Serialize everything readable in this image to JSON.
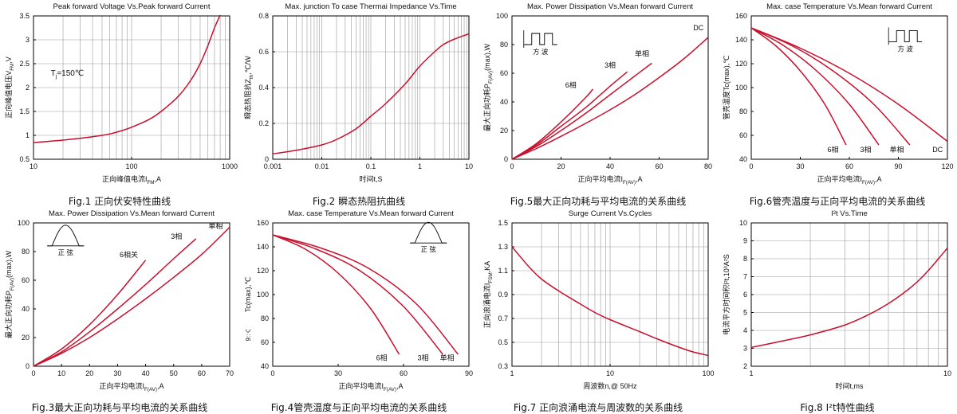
{
  "colors": {
    "curve": "#c8102e",
    "grid": "#9a9a9a",
    "axis": "#000000"
  },
  "chart_data": [
    {
      "type": "line",
      "title": "Peak forward Voltage Vs.Peak forward Current",
      "caption": "Fig.1 正向伏安特性曲线",
      "xlabel": "正向峰值电流I",
      "xlabel_sub": "FM",
      "xlabel_unit": ",A",
      "ylabel": "正向峰值电压V",
      "ylabel_sub": "FM",
      "ylabel_unit": ",V",
      "xscale": "log",
      "xlim": [
        10,
        1000
      ],
      "ylim": [
        0.5,
        3.5
      ],
      "xticks": [
        10,
        100,
        1000
      ],
      "xtick_labels": [
        "10",
        "100",
        "1000"
      ],
      "yticks": [
        0.5,
        1,
        1.5,
        2,
        2.5,
        3,
        3.5
      ],
      "ytick_labels": [
        "0.5",
        "1",
        "1.5",
        "2",
        "2.5",
        "3",
        "3.5"
      ],
      "minor_x": true,
      "ygrid": [
        1,
        1.5,
        2,
        2.5,
        3
      ],
      "annotations": [
        {
          "text": "T",
          "sub": "j",
          "text2": "=150℃",
          "x": 15,
          "y": 2.25
        }
      ],
      "series": [
        {
          "x": [
            10,
            20,
            40,
            60,
            80,
            100,
            150,
            200,
            300,
            400,
            500,
            600,
            700,
            800
          ],
          "y": [
            0.85,
            0.9,
            0.97,
            1.03,
            1.1,
            1.17,
            1.33,
            1.5,
            1.82,
            2.15,
            2.5,
            2.88,
            3.25,
            3.52
          ]
        }
      ]
    },
    {
      "type": "line",
      "title": "Max. junction To case Thermai Impedance Vs.Time",
      "caption": "Fig.2  瞬态热阻抗曲线",
      "xlabel": "时间t,S",
      "xlabel_sub": "",
      "xlabel_unit": "",
      "ylabel": "瞬态热阻抗Z",
      "ylabel_sub": "th",
      "ylabel_unit": ",℃/W",
      "xscale": "log",
      "xlim": [
        0.001,
        10
      ],
      "ylim": [
        0,
        0.8
      ],
      "xticks": [
        0.001,
        0.01,
        0.1,
        1,
        10
      ],
      "xtick_labels": [
        "0.001",
        "0.01",
        "0.1",
        "1",
        "10"
      ],
      "yticks": [
        0,
        0.2,
        0.4,
        0.6,
        0.8
      ],
      "ytick_labels": [
        "0",
        "0.2",
        "0.4",
        "0.6",
        "0.8"
      ],
      "minor_x": true,
      "ygrid": [
        0.2,
        0.4,
        0.6
      ],
      "series": [
        {
          "x": [
            0.001,
            0.003,
            0.01,
            0.02,
            0.05,
            0.1,
            0.2,
            0.5,
            1,
            2,
            3,
            5,
            10
          ],
          "y": [
            0.03,
            0.05,
            0.08,
            0.11,
            0.17,
            0.24,
            0.31,
            0.42,
            0.52,
            0.6,
            0.64,
            0.67,
            0.7
          ]
        }
      ]
    },
    {
      "type": "line",
      "title": "Max. Power Dissipation Vs.Mean forward Current",
      "caption": "Fig.5最大正向功耗与平均电流的关系曲线",
      "xlabel": "正向平均电流I",
      "xlabel_sub": "F(AV)",
      "xlabel_unit": ",A",
      "ylabel": "最大正向功耗P",
      "ylabel_sub": "F(AV)",
      "ylabel_unit": "(max),W",
      "xscale": "linear",
      "xlim": [
        0,
        80
      ],
      "ylim": [
        0,
        100
      ],
      "xticks": [
        0,
        20,
        40,
        60,
        80
      ],
      "xtick_labels": [
        "0",
        "20",
        "40",
        "60",
        "80"
      ],
      "yticks": [
        0,
        20,
        40,
        60,
        80,
        100
      ],
      "ytick_labels": [
        "0",
        "20",
        "40",
        "60",
        "80",
        "100"
      ],
      "inset": {
        "kind": "square",
        "text": "方    波",
        "x": 0.06,
        "y": 0.2
      },
      "series": [
        {
          "name": "6相",
          "x": [
            0,
            10,
            20,
            30,
            33
          ],
          "y": [
            0,
            11,
            26,
            43,
            49
          ],
          "lx": 24,
          "ly": 50
        },
        {
          "name": "3相",
          "x": [
            0,
            10,
            20,
            30,
            40,
            47
          ],
          "y": [
            0,
            10,
            23,
            36,
            51,
            61
          ],
          "lx": 40,
          "ly": 64
        },
        {
          "name": "单相",
          "x": [
            0,
            10,
            20,
            30,
            40,
            50,
            57
          ],
          "y": [
            0,
            9,
            20,
            32,
            45,
            58,
            67
          ],
          "lx": 53,
          "ly": 72
        },
        {
          "name": "DC",
          "x": [
            0,
            10,
            20,
            30,
            40,
            50,
            60,
            70,
            80
          ],
          "y": [
            0,
            7.5,
            16,
            25,
            34.5,
            45,
            57,
            70,
            85
          ],
          "lx": 76,
          "ly": 90
        }
      ]
    },
    {
      "type": "line",
      "title": "Max. case Temperature Vs.Mean forward Current",
      "caption": "Fig.6管壳温度与正向平均电流的关系曲线",
      "xlabel": "正向平均电流I",
      "xlabel_sub": "F(AV)",
      "xlabel_unit": ",A",
      "ylabel": "管壳温度Tc(max),℃",
      "ylabel_sub": "",
      "ylabel_unit": "",
      "xscale": "linear",
      "xlim": [
        0,
        120
      ],
      "ylim": [
        40,
        160
      ],
      "xticks": [
        0,
        30,
        60,
        90,
        120
      ],
      "xtick_labels": [
        "0",
        "30",
        "60",
        "90",
        "120"
      ],
      "yticks": [
        40,
        60,
        80,
        100,
        120,
        140,
        160
      ],
      "ytick_labels": [
        "40",
        "60",
        "80",
        "100",
        "120",
        "140",
        "160"
      ],
      "inset": {
        "kind": "square",
        "text": "方    波",
        "x": 0.7,
        "y": 0.18
      },
      "series": [
        {
          "name": "6相",
          "x": [
            0,
            15,
            30,
            45,
            58
          ],
          "y": [
            150,
            135,
            114,
            86,
            52
          ],
          "lx": 50,
          "ly": 46
        },
        {
          "name": "3相",
          "x": [
            0,
            20,
            40,
            60,
            78
          ],
          "y": [
            150,
            135,
            114,
            86,
            52
          ],
          "lx": 70,
          "ly": 46
        },
        {
          "name": "单相",
          "x": [
            0,
            25,
            50,
            75,
            97
          ],
          "y": [
            150,
            135,
            114,
            86,
            52
          ],
          "lx": 89,
          "ly": 46
        },
        {
          "name": "DC",
          "x": [
            0,
            30,
            60,
            90,
            120
          ],
          "y": [
            150,
            133,
            112,
            86,
            55
          ],
          "lx": 114,
          "ly": 46
        }
      ]
    },
    {
      "type": "line",
      "title": "Max. Power Dissipation Vs.Mean forward Current",
      "caption": "Fig.3最大正向功耗与平均电流的关系曲线",
      "xlabel": "正向平均电流I",
      "xlabel_sub": "F(AV)",
      "xlabel_unit": ",A",
      "ylabel": "最大正向功耗P",
      "ylabel_sub": "F(AV)",
      "ylabel_unit": "(max),W",
      "xscale": "linear",
      "xlim": [
        0,
        70
      ],
      "ylim": [
        0,
        100
      ],
      "xticks": [
        0,
        10,
        20,
        30,
        40,
        50,
        60,
        70
      ],
      "xtick_labels": [
        "0",
        "10",
        "20",
        "30",
        "40",
        "50",
        "60",
        "70"
      ],
      "yticks": [
        0,
        20,
        40,
        60,
        80,
        100
      ],
      "ytick_labels": [
        "0",
        "20",
        "40",
        "60",
        "80",
        "100"
      ],
      "inset": {
        "kind": "sine",
        "text": "正    弦",
        "x": 0.07,
        "y": 0.16
      },
      "series": [
        {
          "name": "6相关",
          "x": [
            0,
            10,
            20,
            30,
            40
          ],
          "y": [
            0,
            12,
            29,
            50,
            74
          ],
          "lx": 34,
          "ly": 76
        },
        {
          "name": "3相",
          "x": [
            0,
            10,
            20,
            30,
            40,
            50,
            58
          ],
          "y": [
            0,
            10,
            24,
            40,
            57,
            75,
            89
          ],
          "lx": 51,
          "ly": 89
        },
        {
          "name": "单相",
          "x": [
            0,
            10,
            20,
            30,
            40,
            50,
            60,
            70
          ],
          "y": [
            0,
            9,
            20,
            33,
            47,
            62,
            78,
            97
          ],
          "lx": 65,
          "ly": 96
        }
      ]
    },
    {
      "type": "line",
      "title": "Max. case Temperature Vs.Mean forward Current",
      "caption": "Fig.4管壳温度与正向平均电流的关系曲线",
      "xlabel": "正向平均电流I",
      "xlabel_sub": "F(AV)",
      "xlabel_unit": ",A",
      "ylabel": "Tc(max),℃",
      "ylabel_sub": "",
      "ylabel_unit": "",
      "ylabel2": "9::く",
      "xscale": "linear",
      "xlim": [
        0,
        90
      ],
      "ylim": [
        40,
        160
      ],
      "xticks": [
        0,
        30,
        60,
        90
      ],
      "xtick_labels": [
        "0",
        "30",
        "60",
        "90"
      ],
      "yticks": [
        40,
        60,
        80,
        100,
        120,
        140,
        160
      ],
      "ytick_labels": [
        "40",
        "60",
        "80",
        "100",
        "120",
        "140",
        "160"
      ],
      "inset": {
        "kind": "sine",
        "text": "正    弦",
        "x": 0.7,
        "y": 0.14
      },
      "series": [
        {
          "name": "6相",
          "x": [
            0,
            15,
            30,
            45,
            58
          ],
          "y": [
            150,
            138,
            118,
            88,
            50
          ],
          "lx": 50,
          "ly": 45
        },
        {
          "name": "3相",
          "x": [
            0,
            20,
            40,
            60,
            78
          ],
          "y": [
            150,
            138,
            120,
            90,
            50
          ],
          "lx": 69,
          "ly": 45
        },
        {
          "name": "单相",
          "x": [
            0,
            22,
            44,
            66,
            85
          ],
          "y": [
            150,
            139,
            122,
            92,
            50
          ],
          "lx": 80,
          "ly": 45
        }
      ]
    },
    {
      "type": "line",
      "title": "Surge Current Vs.Cycles",
      "caption": "Fig.7 正向浪涌电流与周波数的关系曲线",
      "xlabel": "周波数n,@ 50Hz",
      "xlabel_sub": "",
      "xlabel_unit": "",
      "ylabel": "正向浪涌电流I",
      "ylabel_sub": "FSM",
      "ylabel_unit": ",KA",
      "xscale": "log",
      "xlim": [
        1,
        100
      ],
      "ylim": [
        0.3,
        1.5
      ],
      "xticks": [
        1,
        10,
        100
      ],
      "xtick_labels": [
        "1",
        "10",
        "100"
      ],
      "yticks": [
        0.3,
        0.5,
        0.7,
        0.9,
        1.1,
        1.3,
        1.5
      ],
      "ytick_labels": [
        "0.3",
        "0.5",
        "0.7",
        "0.9",
        "1.1",
        "1.3",
        "1.5"
      ],
      "minor_x": true,
      "ygrid": [
        0.5,
        0.7,
        0.9,
        1.1,
        1.3
      ],
      "series": [
        {
          "x": [
            1,
            1.5,
            2,
            3,
            5,
            7,
            10,
            20,
            30,
            50,
            70,
            100
          ],
          "y": [
            1.3,
            1.13,
            1.03,
            0.93,
            0.82,
            0.75,
            0.69,
            0.59,
            0.53,
            0.46,
            0.42,
            0.39
          ]
        }
      ]
    },
    {
      "type": "line",
      "title": "I²t Vs.Time",
      "caption": "Fig.8 I²t特性曲线",
      "xlabel": "时间t,ms",
      "xlabel_sub": "",
      "xlabel_unit": "",
      "ylabel": "电流平方时间积I²t,10³A²S",
      "ylabel_sub": "",
      "ylabel_unit": "",
      "xscale": "log",
      "xlim": [
        1,
        10
      ],
      "ylim": [
        2,
        10
      ],
      "xticks": [
        1,
        10
      ],
      "xtick_labels": [
        "1",
        "10"
      ],
      "yticks": [
        2,
        3,
        4,
        5,
        6,
        7,
        8,
        9,
        10
      ],
      "ytick_labels": [
        "2",
        "3",
        "4",
        "5",
        "6",
        "7",
        "8",
        "9",
        "10"
      ],
      "minor_x": true,
      "ygrid": [
        3,
        4,
        5,
        6,
        7,
        8,
        9
      ],
      "series": [
        {
          "x": [
            1,
            1.5,
            2,
            3,
            4,
            5,
            6,
            7,
            8,
            9,
            10
          ],
          "y": [
            3.05,
            3.45,
            3.75,
            4.3,
            4.9,
            5.5,
            6.1,
            6.7,
            7.35,
            8.0,
            8.6
          ]
        }
      ]
    }
  ]
}
